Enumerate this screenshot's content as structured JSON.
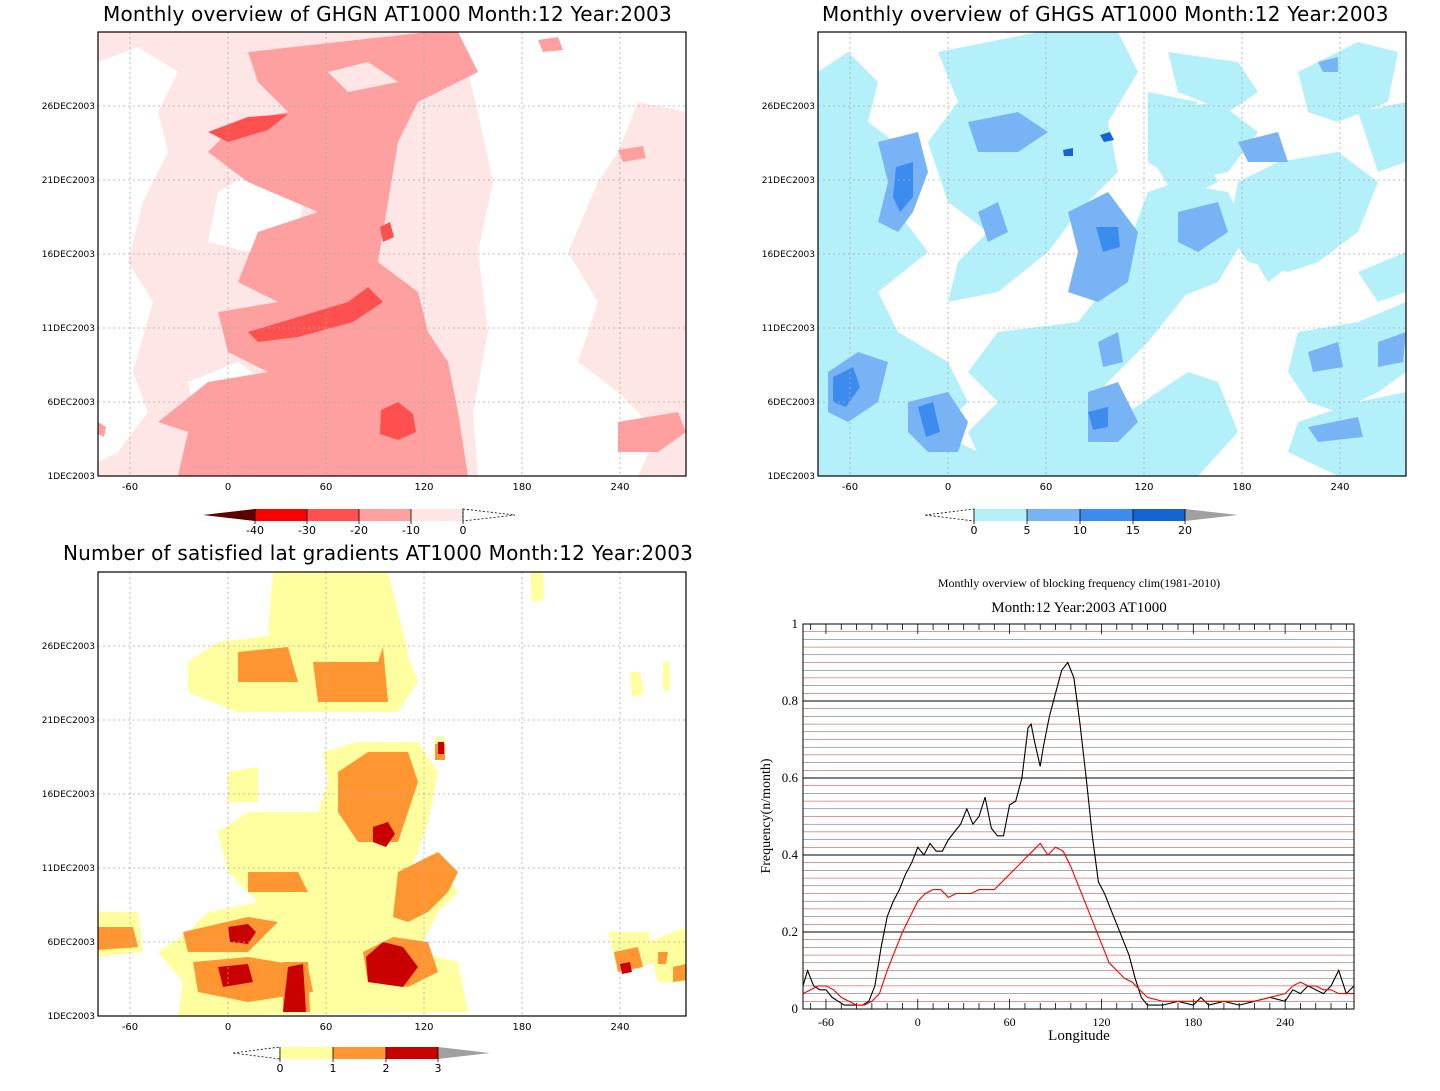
{
  "chart_data": [
    {
      "id": "ghgn",
      "type": "heatmap",
      "title": "Monthly overview of GHGN AT1000 Month:12 Year:2003",
      "xlabel": "",
      "ylabel": "",
      "x_ticks": [
        "-60",
        "0",
        "60",
        "120",
        "180",
        "240"
      ],
      "y_ticks": [
        "1DEC2003",
        "6DEC2003",
        "11DEC2003",
        "16DEC2003",
        "21DEC2003",
        "26DEC2003"
      ],
      "colorbar": {
        "labels": [
          "-40",
          "-30",
          "-20",
          "-10",
          "0"
        ],
        "colors": [
          "#5a0000",
          "#ff0000",
          "#ff5050",
          "#ffa0a0",
          "#ffe6e6"
        ],
        "open_end": "right"
      }
    },
    {
      "id": "ghgs",
      "type": "heatmap",
      "title": "Monthly overview of GHGS AT1000 Month:12 Year:2003",
      "xlabel": "",
      "ylabel": "",
      "x_ticks": [
        "-60",
        "0",
        "60",
        "120",
        "180",
        "240"
      ],
      "y_ticks": [
        "1DEC2003",
        "6DEC2003",
        "11DEC2003",
        "16DEC2003",
        "21DEC2003",
        "26DEC2003"
      ],
      "colorbar": {
        "labels": [
          "0",
          "5",
          "10",
          "15",
          "20"
        ],
        "colors": [
          "#b4f0fa",
          "#78b4f5",
          "#3c8cf0",
          "#1464d2",
          "#a0a0a0"
        ],
        "open_end": "left"
      }
    },
    {
      "id": "nsat",
      "type": "heatmap",
      "title": "Number of satisfied lat gradients AT1000 Month:12 Year:2003",
      "xlabel": "",
      "ylabel": "",
      "x_ticks": [
        "-60",
        "0",
        "60",
        "120",
        "180",
        "240"
      ],
      "y_ticks": [
        "1DEC2003",
        "6DEC2003",
        "11DEC2003",
        "16DEC2003",
        "21DEC2003",
        "26DEC2003"
      ],
      "colorbar": {
        "labels": [
          "0",
          "1",
          "2",
          "3"
        ],
        "colors": [
          "#ffffa0",
          "#ff9632",
          "#c80000",
          "#a0a0a0"
        ],
        "open_end": "left"
      }
    },
    {
      "id": "freq",
      "type": "line",
      "title": "Monthly overview of blocking frequency clim(1981-2010)",
      "subtitle": "Month:12 Year:2003  AT1000",
      "xlabel": "Longitude",
      "ylabel": "Frequency(n/month)",
      "xlim": [
        -75,
        285
      ],
      "ylim": [
        0,
        1
      ],
      "x_ticks": [
        "-60",
        "0",
        "60",
        "120",
        "180",
        "240"
      ],
      "y_ticks": [
        "0",
        "0.2",
        "0.4",
        "0.6",
        "0.8",
        "1"
      ],
      "series": [
        {
          "color": "#000000",
          "x": [
            -75,
            -72,
            -68,
            -64,
            -60,
            -56,
            -52,
            -48,
            -44,
            -40,
            -36,
            -32,
            -28,
            -24,
            -20,
            -16,
            -12,
            -8,
            -4,
            0,
            4,
            8,
            12,
            16,
            20,
            24,
            28,
            32,
            36,
            40,
            44,
            48,
            52,
            56,
            60,
            64,
            68,
            72,
            74,
            76,
            80,
            82,
            86,
            90,
            94,
            98,
            102,
            104,
            106,
            110,
            114,
            118,
            122,
            126,
            130,
            134,
            138,
            142,
            146,
            150,
            160,
            170,
            180,
            185,
            190,
            200,
            210,
            220,
            230,
            240,
            245,
            250,
            255,
            260,
            265,
            270,
            275,
            280,
            285
          ],
          "y": [
            0.06,
            0.1,
            0.06,
            0.05,
            0.05,
            0.03,
            0.02,
            0.01,
            0.01,
            0.01,
            0.01,
            0.02,
            0.06,
            0.16,
            0.24,
            0.28,
            0.31,
            0.35,
            0.38,
            0.42,
            0.4,
            0.43,
            0.41,
            0.41,
            0.44,
            0.46,
            0.48,
            0.52,
            0.48,
            0.5,
            0.55,
            0.47,
            0.45,
            0.45,
            0.53,
            0.54,
            0.6,
            0.73,
            0.74,
            0.7,
            0.63,
            0.68,
            0.76,
            0.82,
            0.88,
            0.9,
            0.86,
            0.8,
            0.74,
            0.6,
            0.45,
            0.33,
            0.3,
            0.26,
            0.22,
            0.18,
            0.14,
            0.08,
            0.03,
            0.01,
            0.01,
            0.02,
            0.01,
            0.03,
            0.01,
            0.02,
            0.01,
            0.02,
            0.03,
            0.02,
            0.05,
            0.04,
            0.06,
            0.05,
            0.04,
            0.06,
            0.1,
            0.04,
            0.06
          ]
        },
        {
          "color": "#ff0000",
          "x": [
            -75,
            -70,
            -65,
            -60,
            -55,
            -50,
            -45,
            -40,
            -35,
            -30,
            -25,
            -20,
            -15,
            -10,
            -5,
            0,
            5,
            10,
            15,
            20,
            25,
            30,
            35,
            40,
            45,
            50,
            55,
            60,
            65,
            70,
            75,
            80,
            85,
            90,
            95,
            100,
            105,
            110,
            115,
            120,
            125,
            130,
            135,
            140,
            145,
            150,
            160,
            170,
            180,
            190,
            200,
            210,
            220,
            230,
            240,
            245,
            250,
            255,
            260,
            265,
            270,
            275,
            280,
            285
          ],
          "y": [
            0.04,
            0.05,
            0.06,
            0.06,
            0.05,
            0.03,
            0.02,
            0.01,
            0.01,
            0.02,
            0.04,
            0.1,
            0.15,
            0.2,
            0.24,
            0.28,
            0.3,
            0.31,
            0.31,
            0.29,
            0.3,
            0.3,
            0.3,
            0.31,
            0.31,
            0.31,
            0.33,
            0.35,
            0.37,
            0.39,
            0.41,
            0.43,
            0.4,
            0.42,
            0.41,
            0.37,
            0.32,
            0.27,
            0.22,
            0.17,
            0.12,
            0.1,
            0.08,
            0.07,
            0.05,
            0.03,
            0.02,
            0.02,
            0.02,
            0.02,
            0.02,
            0.02,
            0.02,
            0.03,
            0.04,
            0.06,
            0.07,
            0.06,
            0.06,
            0.05,
            0.05,
            0.04,
            0.04,
            0.04
          ]
        }
      ]
    }
  ]
}
